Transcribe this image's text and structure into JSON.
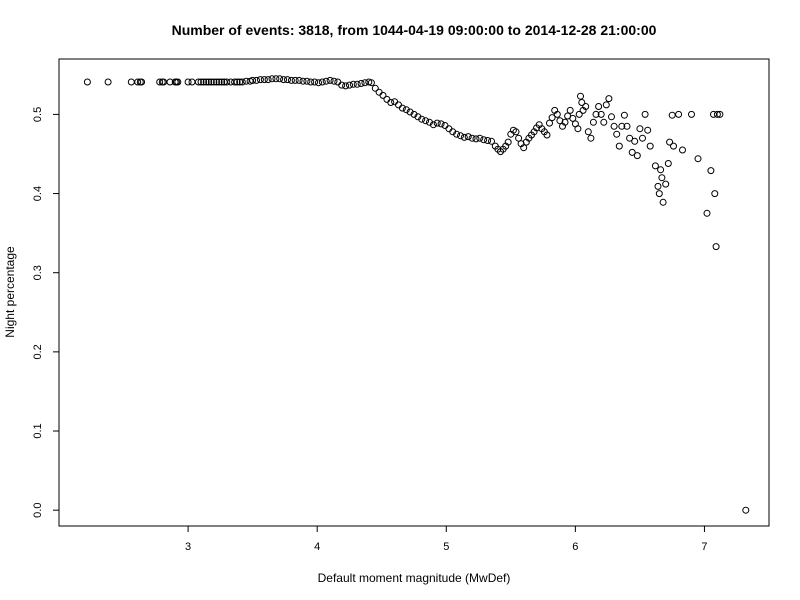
{
  "chart_data": {
    "type": "scatter",
    "title": "Number of events: 3818, from 1044-04-19 09:00:00 to 2014-12-28 21:00:00",
    "xlabel": "Default moment magnitude (MwDef)",
    "ylabel": "Night percentage",
    "xlim": [
      2.0,
      7.5
    ],
    "ylim": [
      -0.02,
      0.57
    ],
    "xticks": [
      3,
      4,
      5,
      6,
      7
    ],
    "yticks": [
      0.0,
      0.1,
      0.2,
      0.3,
      0.4,
      0.5
    ],
    "grid": false,
    "marker": "open-circle",
    "colors": {
      "marker": "#000000",
      "axis": "#000000",
      "background": "#ffffff"
    },
    "series": [
      {
        "points": [
          [
            2.22,
            0.541
          ],
          [
            2.38,
            0.541
          ],
          [
            2.56,
            0.541
          ],
          [
            2.61,
            0.541
          ],
          [
            2.63,
            0.541
          ],
          [
            2.64,
            0.541
          ],
          [
            2.78,
            0.541
          ],
          [
            2.8,
            0.541
          ],
          [
            2.81,
            0.541
          ],
          [
            2.86,
            0.541
          ],
          [
            2.9,
            0.541
          ],
          [
            2.91,
            0.541
          ],
          [
            2.92,
            0.541
          ],
          [
            3.0,
            0.541
          ],
          [
            3.03,
            0.541
          ],
          [
            3.08,
            0.541
          ],
          [
            3.1,
            0.541
          ],
          [
            3.12,
            0.541
          ],
          [
            3.14,
            0.541
          ],
          [
            3.16,
            0.541
          ],
          [
            3.18,
            0.541
          ],
          [
            3.2,
            0.541
          ],
          [
            3.22,
            0.541
          ],
          [
            3.24,
            0.541
          ],
          [
            3.26,
            0.541
          ],
          [
            3.28,
            0.541
          ],
          [
            3.3,
            0.541
          ],
          [
            3.33,
            0.541
          ],
          [
            3.36,
            0.541
          ],
          [
            3.38,
            0.541
          ],
          [
            3.4,
            0.541
          ],
          [
            3.42,
            0.541
          ],
          [
            3.45,
            0.542
          ],
          [
            3.48,
            0.542
          ],
          [
            3.5,
            0.543
          ],
          [
            3.53,
            0.543
          ],
          [
            3.56,
            0.544
          ],
          [
            3.59,
            0.544
          ],
          [
            3.62,
            0.544
          ],
          [
            3.65,
            0.545
          ],
          [
            3.68,
            0.545
          ],
          [
            3.71,
            0.545
          ],
          [
            3.74,
            0.544
          ],
          [
            3.77,
            0.544
          ],
          [
            3.8,
            0.543
          ],
          [
            3.83,
            0.543
          ],
          [
            3.86,
            0.543
          ],
          [
            3.89,
            0.542
          ],
          [
            3.92,
            0.542
          ],
          [
            3.95,
            0.541
          ],
          [
            3.98,
            0.541
          ],
          [
            4.01,
            0.54
          ],
          [
            4.04,
            0.541
          ],
          [
            4.07,
            0.542
          ],
          [
            4.1,
            0.543
          ],
          [
            4.13,
            0.542
          ],
          [
            4.16,
            0.541
          ],
          [
            4.19,
            0.537
          ],
          [
            4.22,
            0.536
          ],
          [
            4.25,
            0.537
          ],
          [
            4.28,
            0.538
          ],
          [
            4.31,
            0.538
          ],
          [
            4.34,
            0.539
          ],
          [
            4.37,
            0.54
          ],
          [
            4.4,
            0.541
          ],
          [
            4.42,
            0.54
          ],
          [
            4.45,
            0.533
          ],
          [
            4.48,
            0.528
          ],
          [
            4.51,
            0.524
          ],
          [
            4.54,
            0.519
          ],
          [
            4.57,
            0.515
          ],
          [
            4.6,
            0.516
          ],
          [
            4.63,
            0.512
          ],
          [
            4.66,
            0.508
          ],
          [
            4.69,
            0.506
          ],
          [
            4.72,
            0.503
          ],
          [
            4.75,
            0.5
          ],
          [
            4.78,
            0.497
          ],
          [
            4.81,
            0.494
          ],
          [
            4.84,
            0.492
          ],
          [
            4.87,
            0.49
          ],
          [
            4.9,
            0.487
          ],
          [
            4.93,
            0.489
          ],
          [
            4.96,
            0.488
          ],
          [
            4.99,
            0.486
          ],
          [
            5.02,
            0.482
          ],
          [
            5.05,
            0.478
          ],
          [
            5.08,
            0.475
          ],
          [
            5.11,
            0.473
          ],
          [
            5.14,
            0.471
          ],
          [
            5.17,
            0.472
          ],
          [
            5.2,
            0.47
          ],
          [
            5.23,
            0.469
          ],
          [
            5.26,
            0.47
          ],
          [
            5.29,
            0.468
          ],
          [
            5.32,
            0.467
          ],
          [
            5.35,
            0.466
          ],
          [
            5.38,
            0.46
          ],
          [
            5.4,
            0.456
          ],
          [
            5.42,
            0.453
          ],
          [
            5.44,
            0.456
          ],
          [
            5.46,
            0.46
          ],
          [
            5.48,
            0.465
          ],
          [
            5.5,
            0.475
          ],
          [
            5.52,
            0.48
          ],
          [
            5.54,
            0.478
          ],
          [
            5.56,
            0.47
          ],
          [
            5.58,
            0.463
          ],
          [
            5.6,
            0.458
          ],
          [
            5.62,
            0.465
          ],
          [
            5.64,
            0.47
          ],
          [
            5.66,
            0.474
          ],
          [
            5.68,
            0.478
          ],
          [
            5.7,
            0.483
          ],
          [
            5.72,
            0.487
          ],
          [
            5.74,
            0.482
          ],
          [
            5.76,
            0.478
          ],
          [
            5.78,
            0.474
          ],
          [
            5.8,
            0.489
          ],
          [
            5.82,
            0.496
          ],
          [
            5.84,
            0.505
          ],
          [
            5.86,
            0.5
          ],
          [
            5.88,
            0.492
          ],
          [
            5.9,
            0.485
          ],
          [
            5.92,
            0.49
          ],
          [
            5.94,
            0.498
          ],
          [
            5.96,
            0.505
          ],
          [
            5.98,
            0.495
          ],
          [
            6.0,
            0.488
          ],
          [
            6.02,
            0.482
          ],
          [
            6.03,
            0.5
          ],
          [
            6.04,
            0.523
          ],
          [
            6.05,
            0.515
          ],
          [
            6.06,
            0.505
          ],
          [
            6.08,
            0.51
          ],
          [
            6.1,
            0.478
          ],
          [
            6.12,
            0.47
          ],
          [
            6.14,
            0.49
          ],
          [
            6.16,
            0.5
          ],
          [
            6.18,
            0.51
          ],
          [
            6.2,
            0.5
          ],
          [
            6.22,
            0.49
          ],
          [
            6.24,
            0.512
          ],
          [
            6.26,
            0.52
          ],
          [
            6.28,
            0.497
          ],
          [
            6.3,
            0.485
          ],
          [
            6.32,
            0.475
          ],
          [
            6.34,
            0.46
          ],
          [
            6.36,
            0.485
          ],
          [
            6.38,
            0.499
          ],
          [
            6.4,
            0.485
          ],
          [
            6.42,
            0.47
          ],
          [
            6.44,
            0.452
          ],
          [
            6.46,
            0.466
          ],
          [
            6.48,
            0.448
          ],
          [
            6.5,
            0.482
          ],
          [
            6.52,
            0.47
          ],
          [
            6.54,
            0.5
          ],
          [
            6.56,
            0.48
          ],
          [
            6.58,
            0.46
          ],
          [
            6.62,
            0.435
          ],
          [
            6.64,
            0.409
          ],
          [
            6.65,
            0.4
          ],
          [
            6.66,
            0.43
          ],
          [
            6.67,
            0.42
          ],
          [
            6.68,
            0.389
          ],
          [
            6.7,
            0.412
          ],
          [
            6.72,
            0.438
          ],
          [
            6.73,
            0.465
          ],
          [
            6.75,
            0.499
          ],
          [
            6.76,
            0.46
          ],
          [
            6.8,
            0.5
          ],
          [
            6.83,
            0.455
          ],
          [
            6.9,
            0.5
          ],
          [
            6.95,
            0.444
          ],
          [
            7.02,
            0.375
          ],
          [
            7.05,
            0.429
          ],
          [
            7.07,
            0.5
          ],
          [
            7.08,
            0.4
          ],
          [
            7.09,
            0.333
          ],
          [
            7.1,
            0.5
          ],
          [
            7.12,
            0.5
          ],
          [
            7.32,
            0.0
          ]
        ]
      }
    ]
  }
}
